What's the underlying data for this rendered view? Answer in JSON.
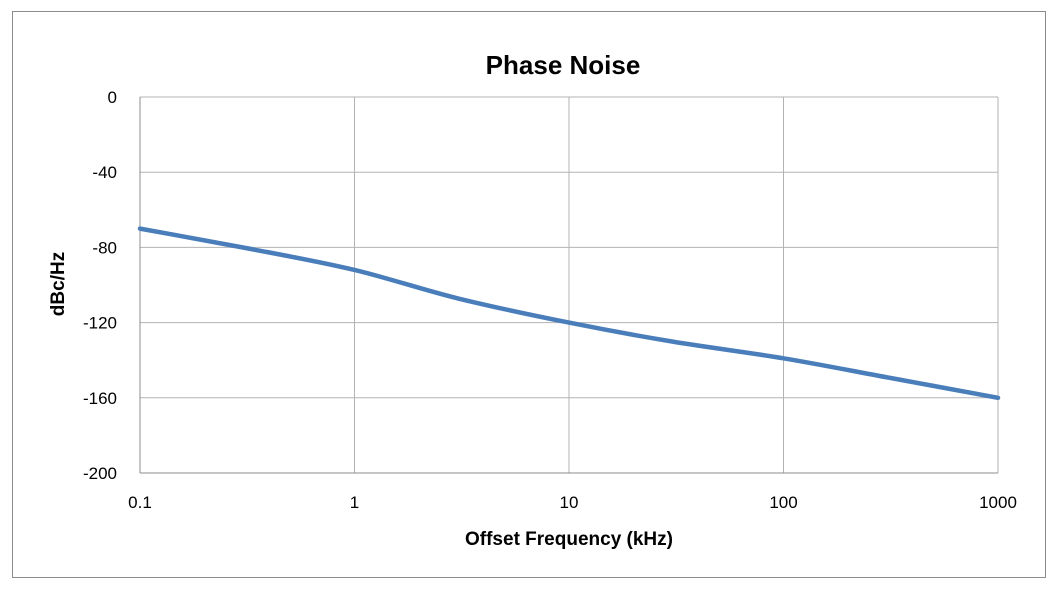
{
  "chart_data": {
    "type": "line",
    "title": "Phase Noise",
    "xlabel": "Offset Frequency (kHz)",
    "ylabel": "dBc/Hz",
    "xscale": "log",
    "xlim": [
      0.1,
      1000
    ],
    "ylim": [
      -200,
      0
    ],
    "x_ticks": [
      0.1,
      1,
      10,
      100,
      1000
    ],
    "x_tick_labels": [
      "0.1",
      "1",
      "10",
      "100",
      "1000"
    ],
    "y_ticks": [
      0,
      -40,
      -80,
      -120,
      -160,
      -200
    ],
    "y_tick_labels": [
      "0",
      "-40",
      "-80",
      "-120",
      "-160",
      "-200"
    ],
    "grid": true,
    "legend": "none",
    "colors": {
      "line": "#4a7ebb",
      "grid": "#b3b3b3",
      "axis": "#8c8c8c"
    },
    "series": [
      {
        "x": [
          0.1,
          0.3,
          1,
          3,
          10,
          30,
          100,
          300,
          1000
        ],
        "y": [
          -70,
          -80,
          -92,
          -107,
          -120,
          -130,
          -139,
          -149,
          -160
        ]
      }
    ]
  }
}
